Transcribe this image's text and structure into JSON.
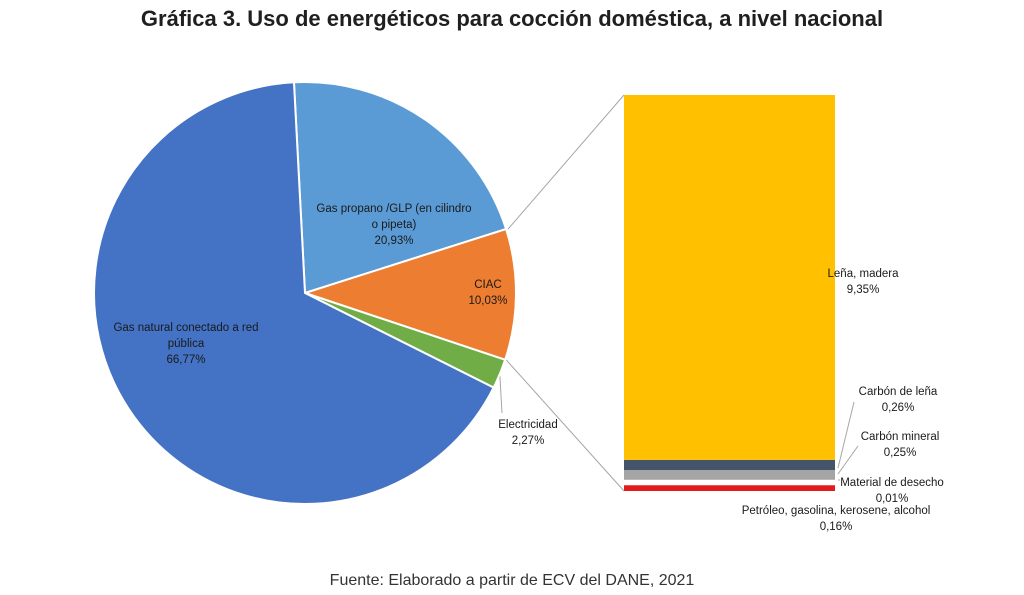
{
  "title": "Gráfica 3. Uso de energéticos para cocción doméstica, a nivel nacional",
  "source": "Fuente: Elaborado a partir de ECV del DANE, 2021",
  "chart_data": [
    {
      "type": "pie",
      "slices": [
        {
          "label_lines": [
            "Gas propano /GLP (en cilindro",
            "o pipeta)"
          ],
          "value_text": "20,93%",
          "value": 20.93,
          "color": "#5b9bd5"
        },
        {
          "label_lines": [
            "CIAC"
          ],
          "value_text": "10,03%",
          "value": 10.03,
          "color": "#ed7d31"
        },
        {
          "label_lines": [
            "Electricidad"
          ],
          "value_text": "2,27%",
          "value": 2.27,
          "color": "#70ad47"
        },
        {
          "label_lines": [
            "Gas natural conectado a red",
            "pública"
          ],
          "value_text": "66,77%",
          "value": 66.77,
          "color": "#4472c4"
        }
      ]
    },
    {
      "type": "bar",
      "stacked": true,
      "breakdown_of": "CIAC",
      "segments": [
        {
          "label": "Petróleo, gasolina, kerosene, alcohol",
          "value_text": "0,16%",
          "value": 0.16,
          "color": "#e31a1c"
        },
        {
          "label": "Material de desecho",
          "value_text": "0,01%",
          "value": 0.01,
          "color": "#ffffff"
        },
        {
          "label": "Carbón mineral",
          "value_text": "0,25%",
          "value": 0.25,
          "color": "#a5a5a5"
        },
        {
          "label": "Carbón de leña",
          "value_text": "0,26%",
          "value": 0.26,
          "color": "#44546a"
        },
        {
          "label": "Leña, madera",
          "value_text": "9,35%",
          "value": 9.35,
          "color": "#ffc000"
        }
      ]
    }
  ]
}
